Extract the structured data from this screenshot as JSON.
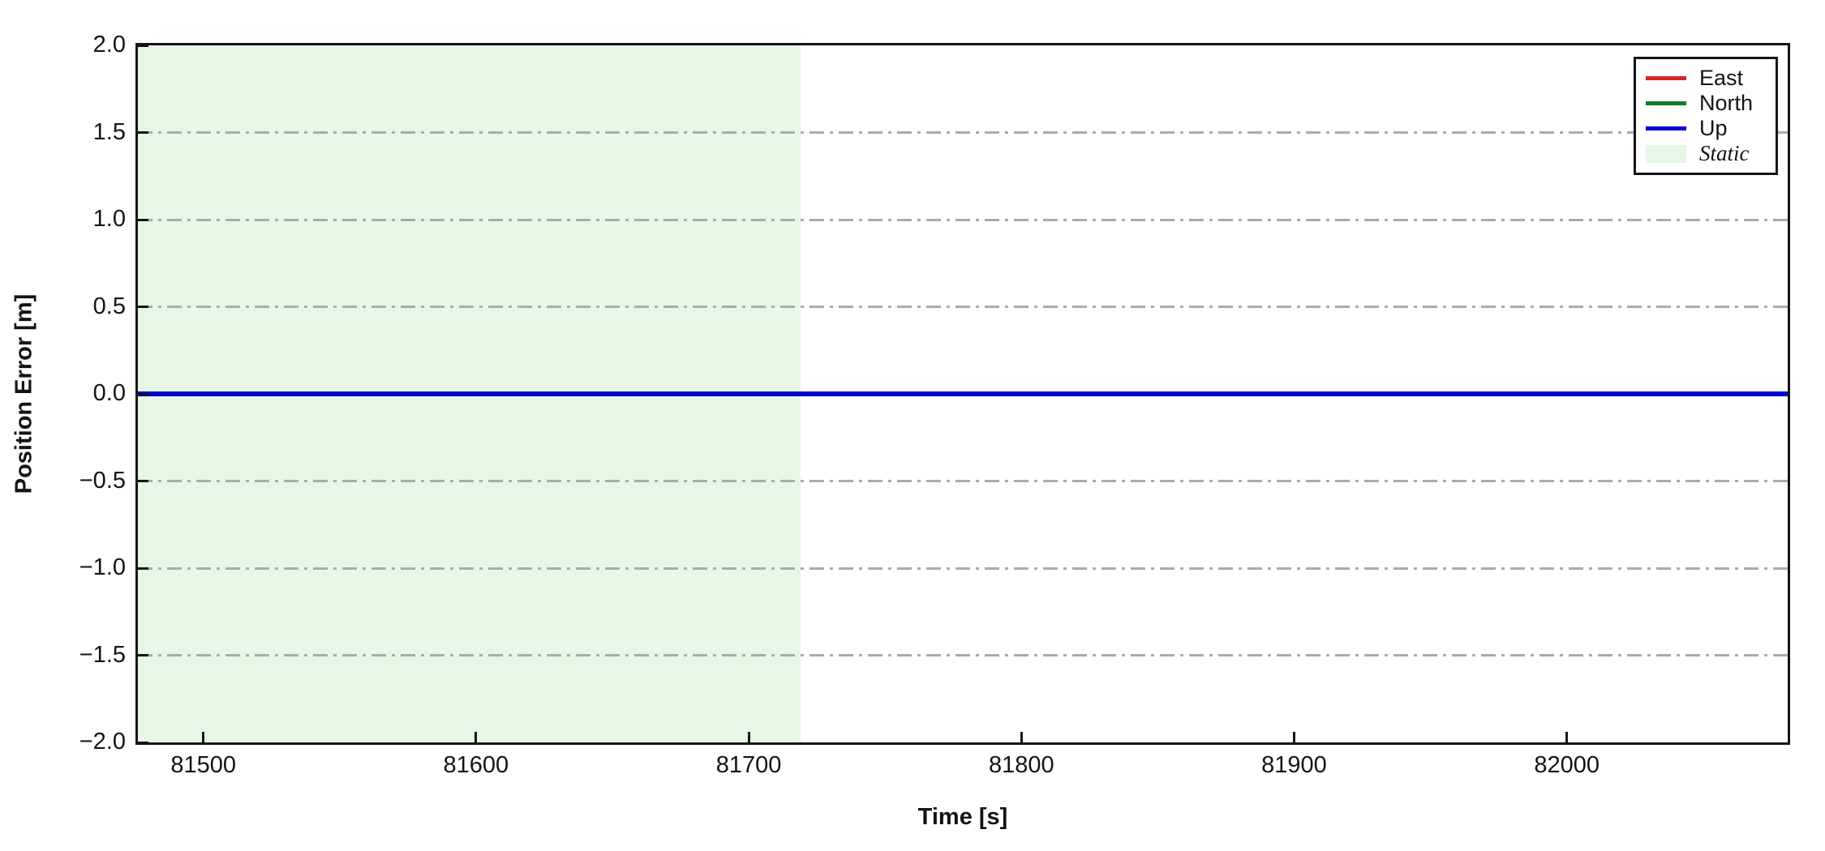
{
  "figure": {
    "background": "#ffffff",
    "spine_color": "#141414"
  },
  "chart_data": {
    "type": "line",
    "title": "",
    "xlabel": "Time [s]",
    "ylabel": "Position Error [m]",
    "xlim": [
      81476,
      82081
    ],
    "ylim": [
      -2.0,
      2.0
    ],
    "xticks": [
      81500,
      81600,
      81700,
      81800,
      81900,
      82000
    ],
    "xtick_labels": [
      "81500",
      "81600",
      "81700",
      "81800",
      "81900",
      "82000"
    ],
    "yticks": [
      2.0,
      1.5,
      1.0,
      0.5,
      0.0,
      -0.5,
      -1.0,
      -1.5,
      -2.0
    ],
    "ytick_labels": [
      "2.0",
      "1.5",
      "1.0",
      "0.5",
      "0.0",
      "−0.5",
      "−1.0",
      "−1.5",
      "−2.0"
    ],
    "grid": {
      "axis": "y",
      "style": "dash-dot",
      "color": "#ababab"
    },
    "series": [
      {
        "name": "East",
        "color": "#d62728",
        "x": [
          81476,
          82081
        ],
        "values": [
          0.0,
          0.0
        ]
      },
      {
        "name": "North",
        "color": "#0e7d26",
        "x": [
          81476,
          82081
        ],
        "values": [
          0.0,
          0.0
        ]
      },
      {
        "name": "Up",
        "color": "#0000cd",
        "x": [
          81476,
          82081
        ],
        "values": [
          0.0,
          0.0
        ]
      }
    ],
    "regions": [
      {
        "name": "Static",
        "xstart": 81476,
        "xend": 81719,
        "fill": "#e6f7e6"
      }
    ],
    "legend": {
      "position": "upper right",
      "entries": [
        {
          "label": "East",
          "swatch": "line",
          "color": "#d62728"
        },
        {
          "label": "North",
          "swatch": "line",
          "color": "#0e7d26"
        },
        {
          "label": "Up",
          "swatch": "line",
          "color": "#0000cd"
        },
        {
          "label": "Static",
          "swatch": "patch",
          "color": "#e6f7e6"
        }
      ]
    }
  }
}
